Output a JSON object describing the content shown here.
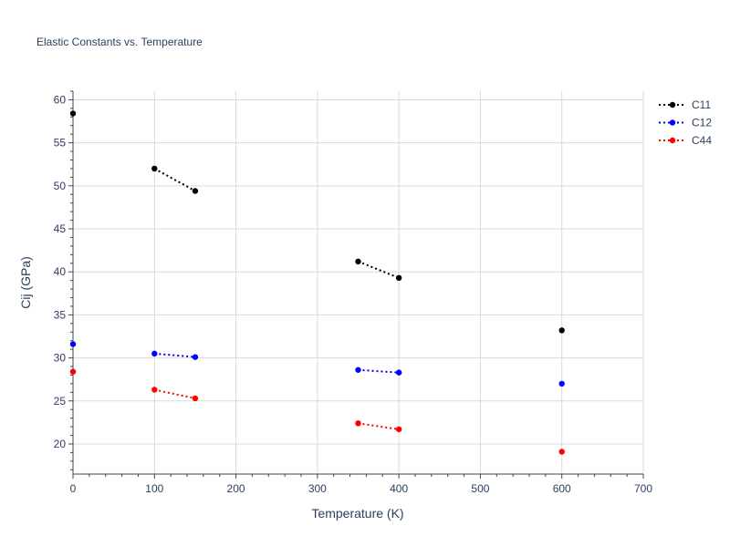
{
  "chart_data": {
    "type": "line",
    "title": "Elastic Constants vs. Temperature",
    "xlabel": "Temperature (K)",
    "ylabel": "Cij (GPa)",
    "xlim": [
      0,
      700
    ],
    "ylim": [
      16.5,
      61
    ],
    "xticks": [
      0,
      100,
      200,
      300,
      400,
      500,
      600,
      700
    ],
    "yticks": [
      20,
      25,
      30,
      35,
      40,
      45,
      50,
      55,
      60
    ],
    "grid": true,
    "legend_position": "top-right",
    "line_style": "dotted",
    "series": [
      {
        "name": "C11",
        "color": "#000000",
        "segments": [
          [
            [
              0,
              58.4
            ]
          ],
          [
            [
              100,
              52.0
            ],
            [
              150,
              49.4
            ]
          ],
          [
            [
              350,
              41.2
            ],
            [
              400,
              39.3
            ]
          ],
          [
            [
              600,
              33.2
            ]
          ]
        ]
      },
      {
        "name": "C12",
        "color": "#0000ff",
        "segments": [
          [
            [
              0,
              31.6
            ]
          ],
          [
            [
              100,
              30.5
            ],
            [
              150,
              30.1
            ]
          ],
          [
            [
              350,
              28.6
            ],
            [
              400,
              28.3
            ]
          ],
          [
            [
              600,
              27.0
            ]
          ]
        ]
      },
      {
        "name": "C44",
        "color": "#ff0000",
        "segments": [
          [
            [
              0,
              28.4
            ]
          ],
          [
            [
              100,
              26.3
            ],
            [
              150,
              25.3
            ]
          ],
          [
            [
              350,
              22.4
            ],
            [
              400,
              21.7
            ]
          ],
          [
            [
              600,
              19.1
            ]
          ]
        ]
      }
    ]
  }
}
